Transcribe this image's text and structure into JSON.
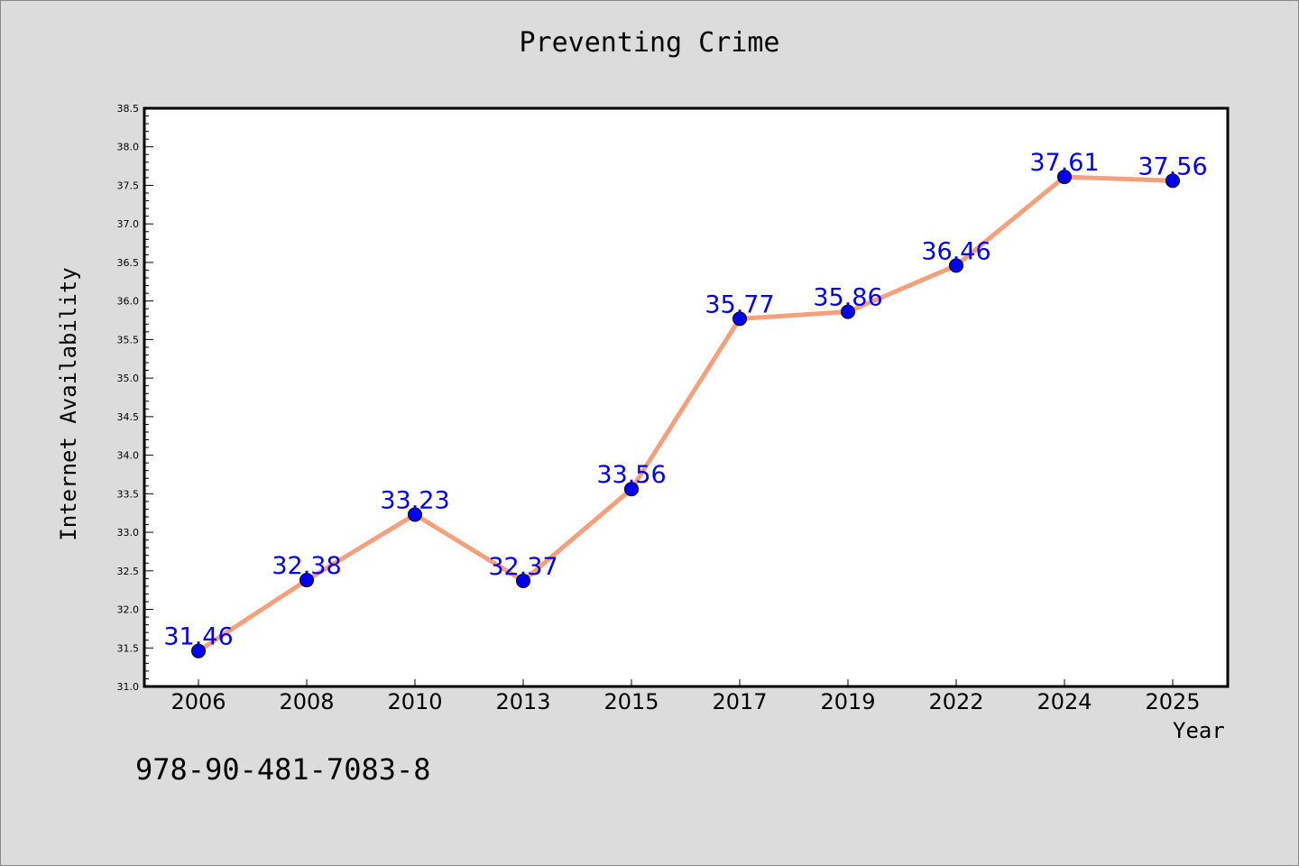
{
  "chart_data": {
    "type": "line",
    "title": "Preventing Crime",
    "xlabel": "Year",
    "ylabel": "Internet Availability",
    "categories": [
      "2006",
      "2008",
      "2010",
      "2013",
      "2015",
      "2017",
      "2019",
      "2022",
      "2024",
      "2025"
    ],
    "series": [
      {
        "values": [
          31.46,
          32.38,
          33.23,
          32.37,
          33.56,
          35.77,
          35.86,
          36.46,
          37.61,
          37.56
        ],
        "labels": [
          "31.46",
          "32.38",
          "33.23",
          "32.37",
          "33.56",
          "35.77",
          "35.86",
          "36.46",
          "37.61",
          "37.56"
        ]
      }
    ],
    "ylim": [
      31.0,
      38.5
    ],
    "yticks": [
      "31.0",
      "31.5",
      "32.0",
      "32.5",
      "33.0",
      "33.5",
      "34.0",
      "34.5",
      "35.0",
      "35.5",
      "36.0",
      "36.5",
      "37.0",
      "37.5",
      "38.0",
      "38.5"
    ],
    "grid": false,
    "legend": "none",
    "colors": {
      "line": "#f4a07c",
      "marker": "#0000ee",
      "label": "#0000ee",
      "plot_background": "#ffffff",
      "page_background": "#dcdcdc"
    }
  },
  "footer": {
    "isbn": "978-90-481-7083-8"
  }
}
